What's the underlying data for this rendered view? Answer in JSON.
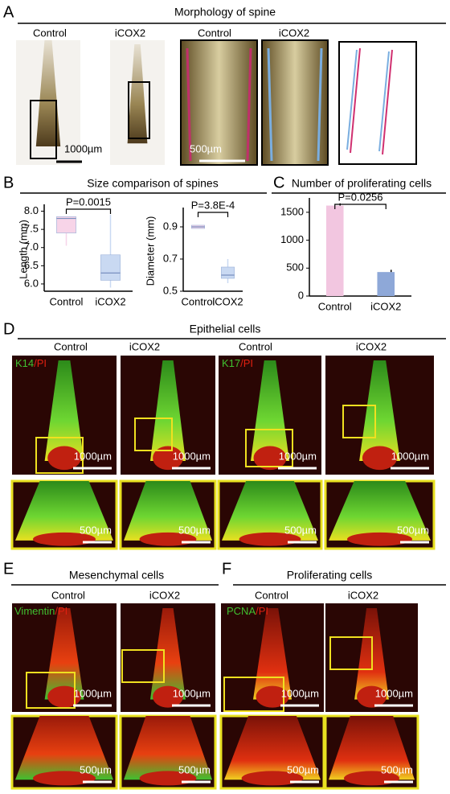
{
  "panel_a": {
    "letter": "A",
    "title": "Morphology of spine",
    "labels": [
      "Control",
      "iCOX2",
      "Control",
      "iCOX2"
    ],
    "scale_bars": [
      "1000µm",
      "500µm"
    ]
  },
  "panel_b": {
    "letter": "B",
    "title": "Size comparison of spines"
  },
  "panel_c": {
    "letter": "C",
    "title": "Number of proliferating cells"
  },
  "panel_d": {
    "letter": "D",
    "title": "Epithelial cells",
    "labels": [
      "Control",
      "iCOX2",
      "Control",
      "iCOX2"
    ],
    "stains": [
      [
        "K14",
        "/PI"
      ],
      [
        "K17",
        "/PI"
      ]
    ],
    "scale_bars": [
      "1000µm",
      "1000µm",
      "1000µm",
      "1000µm",
      "500µm",
      "500µm",
      "500µm",
      "500µm"
    ]
  },
  "panel_e": {
    "letter": "E",
    "title": "Mesenchymal cells",
    "labels": [
      "Control",
      "iCOX2"
    ],
    "stains": [
      [
        "Vimentin",
        "/PI"
      ]
    ],
    "scale_bars": [
      "1000µm",
      "1000µm",
      "500µm",
      "500µm"
    ]
  },
  "panel_f": {
    "letter": "F",
    "title": "Proliferating cells",
    "labels": [
      "Control",
      "iCOX2"
    ],
    "stains": [
      [
        "PCNA",
        "/PI"
      ]
    ],
    "scale_bars": [
      "1000µm",
      "1000µm",
      "500µm",
      "500µm"
    ]
  },
  "chart_data": [
    {
      "type": "box",
      "ylabel": "Length (mm)",
      "categories": [
        "Control",
        "iCOX2"
      ],
      "min": [
        7.05,
        5.9
      ],
      "q1": [
        7.4,
        6.1
      ],
      "median": [
        7.8,
        6.3
      ],
      "q3": [
        7.85,
        6.8
      ],
      "max": [
        7.85,
        7.9
      ],
      "colors": [
        "#f7d4e8",
        "#c9d9f2"
      ],
      "ylim": [
        5.8,
        8.1
      ],
      "yticks": [
        {
          "value": 6,
          "label": "6.0"
        },
        6.5,
        {
          "value": 7,
          "label": "7.0"
        },
        7.5,
        {
          "value": 8,
          "label": "8.0"
        }
      ],
      "annotation": "P=0.0015"
    },
    {
      "type": "box",
      "ylabel": "Diameter (mm)",
      "categories": [
        "Control",
        "iCOX2"
      ],
      "min": [
        0.89,
        0.55
      ],
      "q1": [
        0.89,
        0.58
      ],
      "median": [
        0.9,
        0.6
      ],
      "q3": [
        0.91,
        0.65
      ],
      "max": [
        0.91,
        0.7
      ],
      "colors": [
        "#f7d4e8",
        "#c9d9f2"
      ],
      "ylim": [
        0.5,
        1.0
      ],
      "yticks": [
        0.5,
        0.7,
        0.9
      ],
      "annotation": "P=3.8E-4"
    },
    {
      "type": "bar",
      "categories": [
        "Control",
        "iCOX2"
      ],
      "values": [
        1620,
        430
      ],
      "errors": [
        40,
        40
      ],
      "colors": [
        "#f2c6e0",
        "#8ea8d8"
      ],
      "ylim": [
        0,
        1700
      ],
      "yticks": [
        0,
        500,
        1000,
        1500
      ],
      "annotation": "P=0.0256"
    }
  ]
}
